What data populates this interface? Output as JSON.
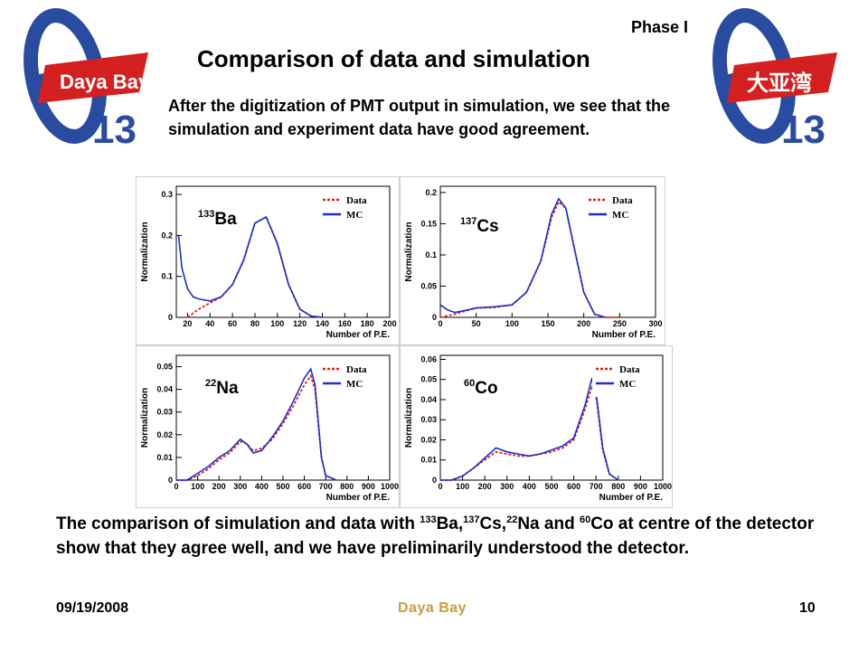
{
  "header": {
    "phase": "Phase I",
    "title": "Comparison of data and simulation"
  },
  "logos": {
    "left_text": "Daya Bay",
    "left_number": "13",
    "right_text": "大亚湾",
    "right_number": "13",
    "theta_color": "#2a4ca0",
    "badge_color": "#d42020"
  },
  "intro": "After the digitization of PMT output in simulation, we see that the simulation and experiment data have good agreement.",
  "conclusion": {
    "pre": "The comparison of simulation and data with ",
    "s1": "133",
    "e1": "Ba,",
    "s2": "137",
    "e2": "Cs,",
    "s3": "22",
    "e3": "Na and ",
    "s4": "60",
    "e4": "Co at centre of the detector show that they agree well, and we have preliminarily understood the detector."
  },
  "footer": {
    "date": "09/19/2008",
    "center": "Daya Bay",
    "page": "10"
  },
  "colors": {
    "data": "#e0201c",
    "mc": "#1a2fd0"
  },
  "chart_data": [
    {
      "type": "line",
      "isotope_sup": "133",
      "isotope": "Ba",
      "xlabel": "Number of P.E.",
      "ylabel": "Normalization",
      "xlim": [
        10,
        200
      ],
      "ylim": [
        0,
        0.32
      ],
      "xticks": [
        20,
        40,
        60,
        80,
        100,
        120,
        140,
        160,
        180,
        200
      ],
      "yticks": [
        0,
        0.1,
        0.2,
        0.3
      ],
      "legend": "top-right",
      "series": [
        {
          "name": "Data",
          "x": [
            20,
            30,
            40,
            50,
            60,
            70,
            80,
            90,
            100,
            110,
            120,
            130,
            140
          ],
          "y": [
            0.0,
            0.02,
            0.035,
            0.05,
            0.08,
            0.14,
            0.23,
            0.245,
            0.18,
            0.08,
            0.02,
            0.003,
            0.0
          ]
        },
        {
          "name": "MC",
          "x": [
            12,
            15,
            20,
            25,
            30,
            40,
            50,
            60,
            70,
            80,
            90,
            100,
            110,
            120,
            130,
            140
          ],
          "y": [
            0.2,
            0.12,
            0.07,
            0.05,
            0.045,
            0.04,
            0.05,
            0.08,
            0.14,
            0.23,
            0.245,
            0.18,
            0.08,
            0.02,
            0.003,
            0.0
          ]
        }
      ]
    },
    {
      "type": "line",
      "isotope_sup": "137",
      "isotope": "Cs",
      "xlabel": "Number of P.E.",
      "ylabel": "Normalization",
      "xlim": [
        0,
        300
      ],
      "ylim": [
        0,
        0.21
      ],
      "xticks": [
        0,
        50,
        100,
        150,
        200,
        250,
        300
      ],
      "yticks": [
        0,
        0.05,
        0.1,
        0.15,
        0.2
      ],
      "legend": "top-right",
      "series": [
        {
          "name": "Data",
          "x": [
            0,
            20,
            50,
            75,
            100,
            120,
            140,
            155,
            165,
            175,
            185,
            200,
            215,
            230,
            250
          ],
          "y": [
            0.0,
            0.005,
            0.015,
            0.016,
            0.02,
            0.04,
            0.09,
            0.16,
            0.185,
            0.175,
            0.12,
            0.04,
            0.005,
            0.0,
            0.0
          ]
        },
        {
          "name": "MC",
          "x": [
            0,
            10,
            20,
            30,
            50,
            75,
            100,
            120,
            140,
            155,
            165,
            175,
            185,
            200,
            215,
            230
          ],
          "y": [
            0.02,
            0.012,
            0.008,
            0.01,
            0.015,
            0.017,
            0.02,
            0.04,
            0.09,
            0.165,
            0.19,
            0.175,
            0.12,
            0.04,
            0.005,
            0.0
          ]
        }
      ]
    },
    {
      "type": "line",
      "isotope_sup": "22",
      "isotope": "Na",
      "xlabel": "Number of P.E.",
      "ylabel": "Normalization",
      "xlim": [
        0,
        1000
      ],
      "ylim": [
        0,
        0.055
      ],
      "xticks": [
        0,
        100,
        200,
        300,
        400,
        500,
        600,
        700,
        800,
        900,
        1000
      ],
      "yticks": [
        0,
        0.01,
        0.02,
        0.03,
        0.04,
        0.05
      ],
      "legend": "top-right",
      "series": [
        {
          "name": "Data",
          "x": [
            0,
            50,
            100,
            150,
            200,
            250,
            300,
            330,
            360,
            400,
            450,
            500,
            550,
            600,
            630,
            650,
            680,
            700,
            750
          ],
          "y": [
            0.0,
            0.0,
            0.002,
            0.005,
            0.009,
            0.012,
            0.017,
            0.016,
            0.013,
            0.014,
            0.018,
            0.025,
            0.033,
            0.042,
            0.046,
            0.04,
            0.01,
            0.002,
            0.0
          ]
        },
        {
          "name": "MC",
          "x": [
            0,
            50,
            100,
            150,
            200,
            250,
            300,
            330,
            360,
            400,
            450,
            500,
            550,
            600,
            630,
            650,
            680,
            700,
            750
          ],
          "y": [
            0.0,
            0.0,
            0.003,
            0.006,
            0.01,
            0.013,
            0.018,
            0.016,
            0.012,
            0.013,
            0.019,
            0.026,
            0.035,
            0.045,
            0.049,
            0.042,
            0.01,
            0.002,
            0.0
          ]
        }
      ]
    },
    {
      "type": "line",
      "isotope_sup": "60",
      "isotope": "Co",
      "xlabel": "Number of P.E.",
      "ylabel": "Normalization",
      "xlim": [
        0,
        1000
      ],
      "ylim": [
        0,
        0.062
      ],
      "xticks": [
        0,
        100,
        200,
        300,
        400,
        500,
        600,
        700,
        800,
        900,
        1000
      ],
      "yticks": [
        0,
        0.01,
        0.02,
        0.03,
        0.04,
        0.05,
        0.06
      ],
      "legend": "top-right",
      "series": [
        {
          "name": "Data",
          "x": [
            0,
            50,
            100,
            150,
            200,
            250,
            300,
            350,
            400,
            450,
            500,
            550,
            600,
            650,
            680,
            700,
            730,
            760,
            800
          ],
          "y": [
            0.0,
            0.0,
            0.002,
            0.006,
            0.01,
            0.014,
            0.013,
            0.012,
            0.012,
            0.013,
            0.014,
            0.016,
            0.02,
            0.035,
            0.046,
            0.042,
            0.015,
            0.003,
            0.0
          ]
        },
        {
          "name": "MC",
          "x": [
            0,
            50,
            100,
            150,
            200,
            250,
            300,
            350,
            400,
            450,
            500,
            550,
            600,
            650,
            680,
            700,
            730,
            760,
            800
          ],
          "y": [
            0.0,
            0.0,
            0.002,
            0.006,
            0.011,
            0.016,
            0.014,
            0.013,
            0.012,
            0.013,
            0.015,
            0.017,
            0.021,
            0.037,
            0.05,
            0.044,
            0.016,
            0.003,
            0.0
          ]
        }
      ]
    }
  ]
}
